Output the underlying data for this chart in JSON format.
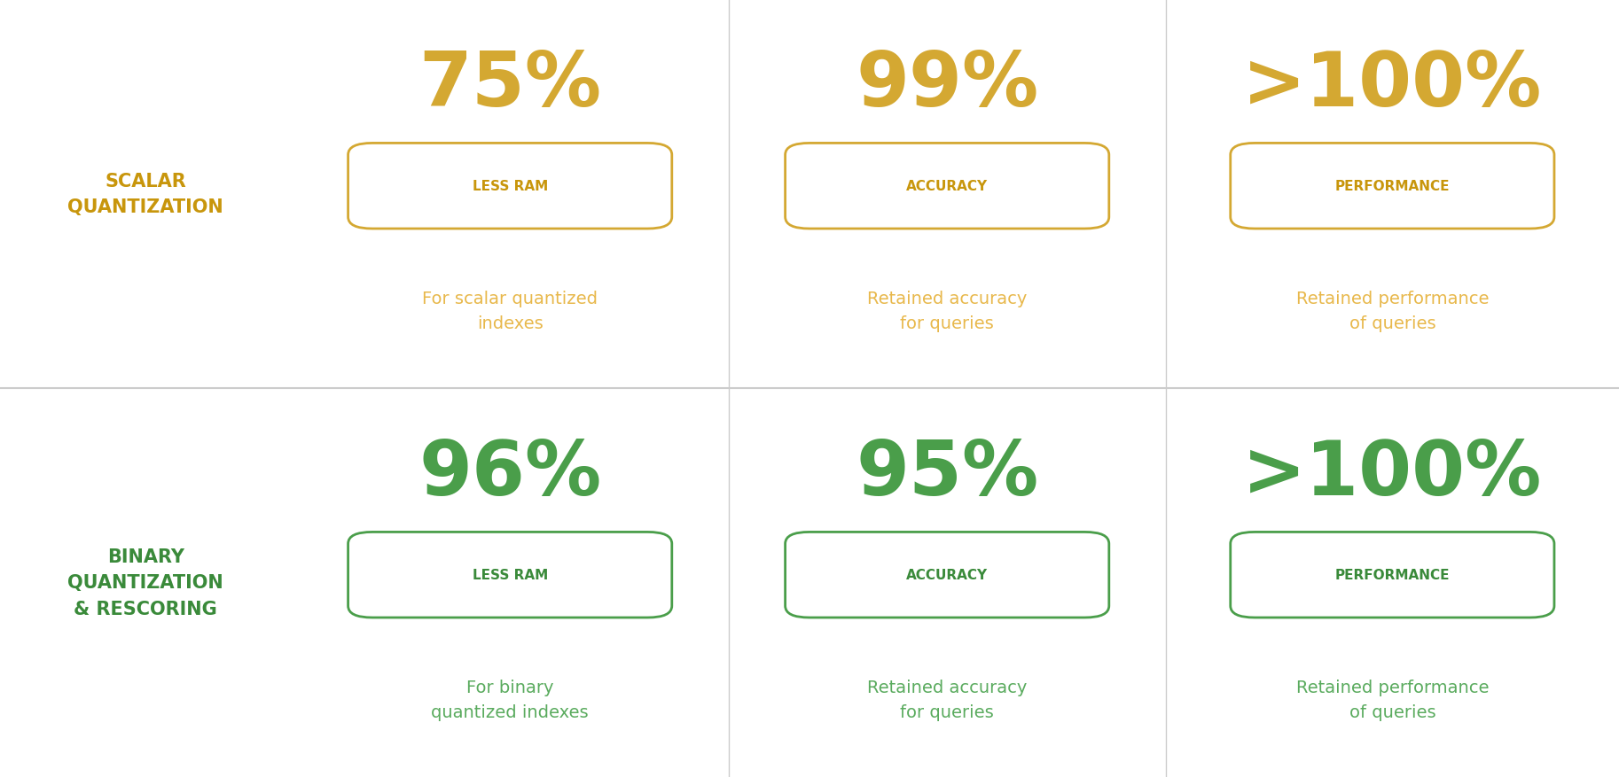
{
  "background_color": "#ffffff",
  "row_divider_color": "#cccccc",
  "col_divider_color": "#cccccc",
  "scalar_color_dark": "#C8960C",
  "scalar_color_label": "#D4A832",
  "scalar_color_text": "#E8B84B",
  "scalar_label": "SCALAR\nQUANTIZATION",
  "binary_color_dark": "#3a8a3a",
  "binary_color_label": "#4a9e4a",
  "binary_color_text": "#5aab5e",
  "binary_label": "BINARY\nQUANTIZATION\n& RESCORING",
  "row1": {
    "metrics": [
      {
        "big_text": "75%",
        "badge": "LESS RAM",
        "desc": "For scalar quantized\nindexes"
      },
      {
        "big_text": "99%",
        "badge": "ACCURACY",
        "desc": "Retained accuracy\nfor queries"
      },
      {
        "big_text": ">100%",
        "badge": "PERFORMANCE",
        "desc": "Retained performance\nof queries"
      }
    ]
  },
  "row2": {
    "metrics": [
      {
        "big_text": "96%",
        "badge": "LESS RAM",
        "desc": "For binary\nquantized indexes"
      },
      {
        "big_text": "95%",
        "badge": "ACCURACY",
        "desc": "Retained accuracy\nfor queries"
      },
      {
        "big_text": ">100%",
        "badge": "PERFORMANCE",
        "desc": "Retained performance\nof queries"
      }
    ]
  }
}
